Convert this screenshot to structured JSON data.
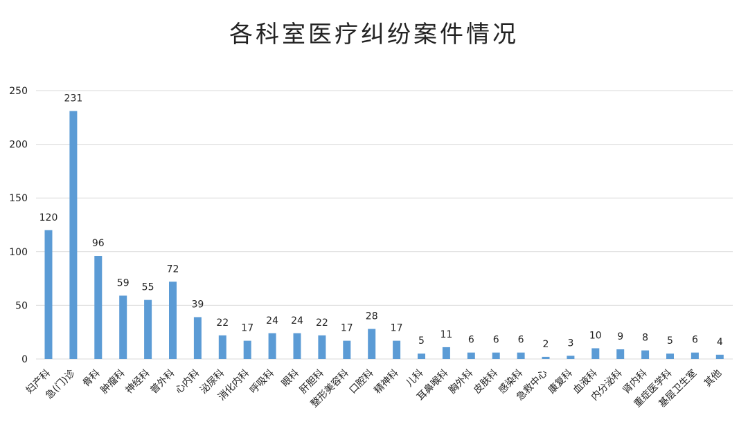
{
  "chart_data": {
    "type": "bar",
    "title": "各科室医疗纠纷案件情况",
    "xlabel": "",
    "ylabel": "",
    "ylim": [
      0,
      250
    ],
    "yticks": [
      0,
      50,
      100,
      150,
      200,
      250
    ],
    "grid": true,
    "legend": "none",
    "bar_color": "#5B9BD5",
    "categories": [
      "妇产科",
      "急(门)诊",
      "骨科",
      "肿瘤科",
      "神经科",
      "普外科",
      "心内科",
      "泌尿科",
      "消化内科",
      "呼吸科",
      "眼科",
      "肝胆科",
      "整形美容科",
      "口腔科",
      "精神科",
      "儿科",
      "耳鼻喉科",
      "胸外科",
      "皮肤科",
      "感染科",
      "急救中心",
      "康复科",
      "血液科",
      "内分泌科",
      "肾内科",
      "重症医学科",
      "基层卫生室",
      "其他"
    ],
    "values": [
      120,
      231,
      96,
      59,
      55,
      72,
      39,
      22,
      17,
      24,
      24,
      22,
      17,
      28,
      17,
      5,
      11,
      6,
      6,
      6,
      2,
      3,
      10,
      9,
      8,
      5,
      6,
      4
    ]
  }
}
